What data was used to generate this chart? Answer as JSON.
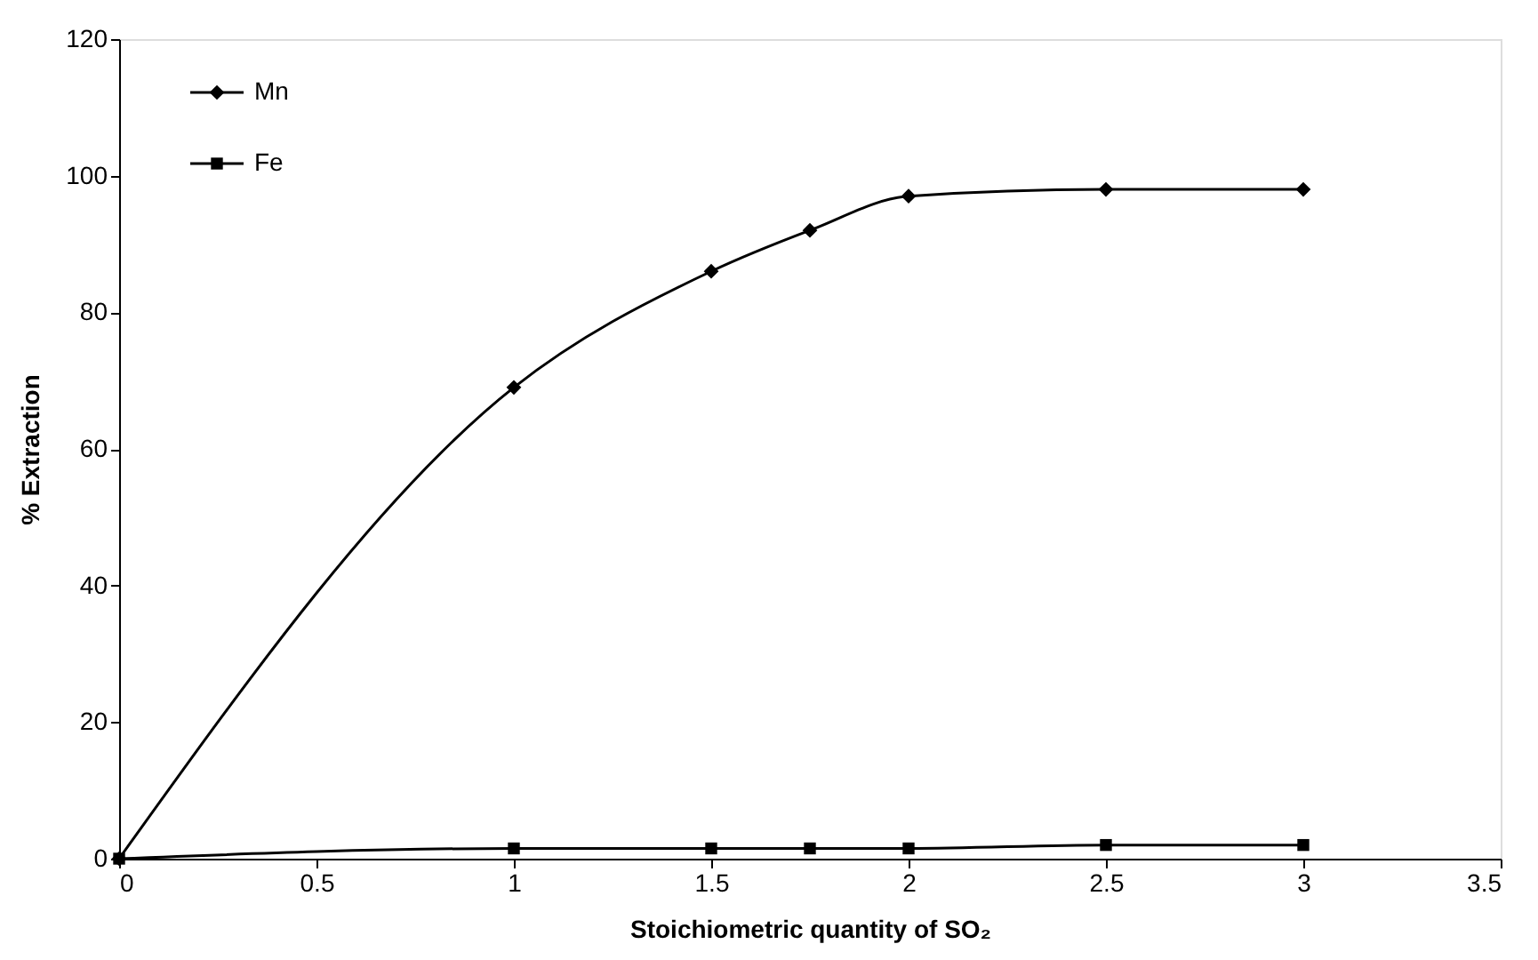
{
  "chart_data": {
    "type": "line",
    "xlabel": "Stoichiometric quantity of SO₂",
    "ylabel": "% Extraction",
    "x": [
      0,
      1,
      1.5,
      1.75,
      2,
      2.5,
      3
    ],
    "series": [
      {
        "name": "Mn",
        "color": "#000000",
        "marker": "diamond",
        "values": [
          0,
          69,
          86,
          92,
          97,
          98,
          98
        ]
      },
      {
        "name": "Fe",
        "color": "#000000",
        "marker": "square",
        "values": [
          0,
          1.5,
          1.5,
          1.5,
          1.5,
          2,
          2
        ]
      }
    ],
    "xlim": [
      0,
      3.5
    ],
    "xticks": [
      0,
      0.5,
      1,
      1.5,
      2,
      2.5,
      3,
      3.5
    ],
    "ylim": [
      0,
      120
    ],
    "yticks": [
      0,
      20,
      40,
      60,
      80,
      100,
      120
    ],
    "grid": false,
    "legend": "top left",
    "line_style": "solid"
  }
}
